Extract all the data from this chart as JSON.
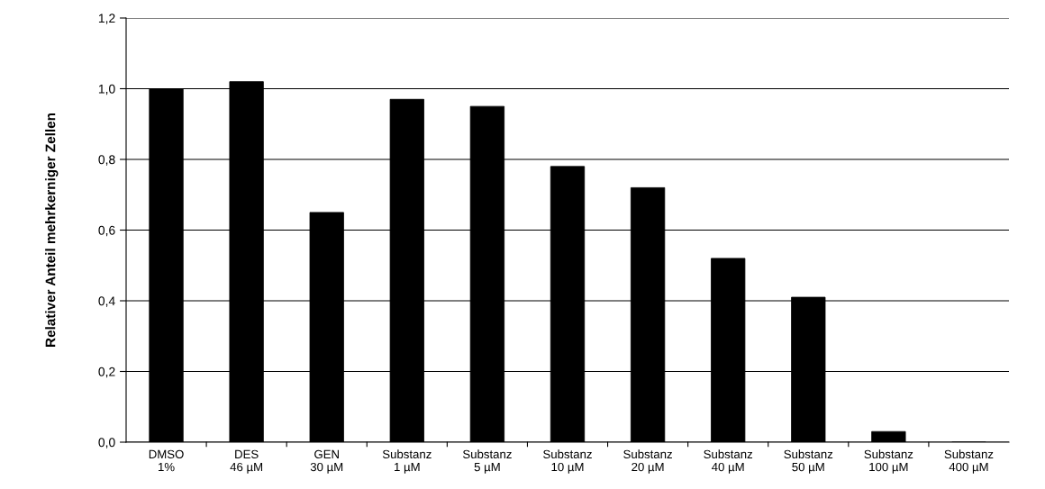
{
  "chart_data": {
    "type": "bar",
    "ylabel": "Relativer Anteil mehrkerniger Zellen",
    "categories": [
      "DMSO\n1%",
      "DES\n46 µM",
      "GEN\n30 µM",
      "Substanz\n1 µM",
      "Substanz\n5 µM",
      "Substanz\n10 µM",
      "Substanz\n20 µM",
      "Substanz\n40 µM",
      "Substanz\n50 µM",
      "Substanz\n100 µM",
      "Substanz\n400 µM"
    ],
    "values": [
      1.0,
      1.02,
      0.65,
      0.97,
      0.95,
      0.78,
      0.72,
      0.52,
      0.41,
      0.03,
      0
    ],
    "color": "#000000",
    "ylim": [
      0,
      1.2
    ],
    "yticks": [
      {
        "value": 0,
        "label": "0,0"
      },
      {
        "value": 0.2,
        "label": "0,2"
      },
      {
        "value": 0.4,
        "label": "0,4"
      },
      {
        "value": 0.6,
        "label": "0,6"
      },
      {
        "value": 0.8,
        "label": "0,8"
      },
      {
        "value": 1.0,
        "label": "1,0"
      },
      {
        "value": 1.2,
        "label": "1,2"
      }
    ],
    "grid": "y",
    "legend": false
  }
}
